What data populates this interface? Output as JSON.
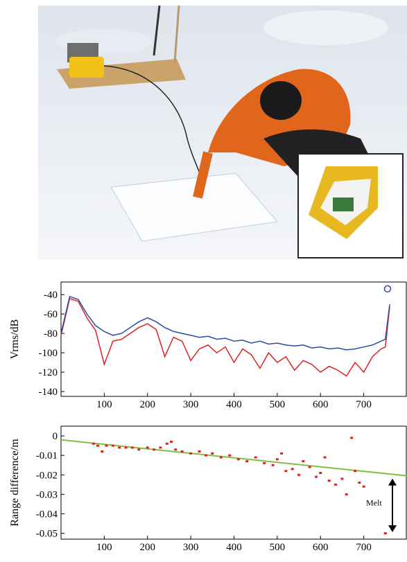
{
  "chart_data": [
    {
      "type": "line",
      "ylabel": "Vrms/dB",
      "x": [
        0,
        20,
        40,
        60,
        80,
        100,
        120,
        140,
        160,
        180,
        200,
        220,
        240,
        260,
        280,
        300,
        320,
        340,
        360,
        380,
        400,
        420,
        440,
        460,
        480,
        500,
        520,
        540,
        560,
        580,
        600,
        620,
        640,
        660,
        680,
        700,
        720,
        740,
        750,
        760
      ],
      "series": [
        {
          "color": "#e02020",
          "values": [
            -82,
            -44,
            -47,
            -64,
            -77,
            -112,
            -88,
            -86,
            -80,
            -74,
            -70,
            -76,
            -104,
            -84,
            -88,
            -108,
            -96,
            -92,
            -100,
            -94,
            -110,
            -96,
            -102,
            -116,
            -100,
            -110,
            -104,
            -118,
            -108,
            -112,
            -120,
            -114,
            -118,
            -124,
            -110,
            -120,
            -104,
            -96,
            -94,
            -52
          ]
        },
        {
          "color": "#2a4aa8",
          "values": [
            -80,
            -42,
            -45,
            -60,
            -72,
            -78,
            -82,
            -80,
            -74,
            -68,
            -64,
            -68,
            -74,
            -78,
            -80,
            -82,
            -84,
            -83,
            -86,
            -85,
            -88,
            -87,
            -90,
            -88,
            -91,
            -90,
            -92,
            -93,
            -92,
            -95,
            -94,
            -96,
            -95,
            -97,
            -96,
            -94,
            -92,
            -88,
            -86,
            -50
          ]
        }
      ],
      "marker": {
        "x": 755,
        "y": -34,
        "color": "#2a4aa8"
      },
      "xlim": [
        0,
        800
      ],
      "ylim": [
        -145,
        -27
      ],
      "xticks": [
        100,
        200,
        300,
        400,
        500,
        600,
        700
      ],
      "yticks": [
        -140,
        -120,
        -100,
        -80,
        -60,
        -40
      ]
    },
    {
      "type": "scatter",
      "ylabel": "Range difference/m",
      "annotation": "Melt",
      "x": [
        75,
        85,
        95,
        105,
        120,
        135,
        150,
        165,
        180,
        200,
        215,
        230,
        245,
        255,
        265,
        280,
        300,
        320,
        335,
        350,
        370,
        390,
        410,
        430,
        450,
        470,
        490,
        500,
        510,
        520,
        535,
        550,
        560,
        575,
        590,
        600,
        610,
        620,
        635,
        650,
        660,
        672,
        680,
        690,
        700,
        750
      ],
      "series": [
        {
          "color": "#e02020",
          "values": [
            -0.004,
            -0.005,
            -0.008,
            -0.005,
            -0.005,
            -0.006,
            -0.006,
            -0.006,
            -0.007,
            -0.006,
            -0.007,
            -0.006,
            -0.004,
            -0.003,
            -0.007,
            -0.008,
            -0.009,
            -0.008,
            -0.01,
            -0.009,
            -0.011,
            -0.01,
            -0.012,
            -0.013,
            -0.011,
            -0.014,
            -0.015,
            -0.012,
            -0.009,
            -0.018,
            -0.017,
            -0.02,
            -0.013,
            -0.016,
            -0.021,
            -0.019,
            -0.011,
            -0.023,
            -0.025,
            -0.022,
            -0.03,
            -0.001,
            -0.018,
            -0.024,
            -0.026,
            -0.05
          ]
        }
      ],
      "fit_line": {
        "x": [
          0,
          800
        ],
        "y": [
          -0.002,
          -0.0205
        ],
        "color": "#7cc142"
      },
      "xlim": [
        0,
        800
      ],
      "ylim": [
        -0.053,
        0.005
      ],
      "xticks": [
        100,
        200,
        300,
        400,
        500,
        600,
        700
      ],
      "yticks": [
        0,
        -0.01,
        -0.02,
        -0.03,
        -0.04,
        -0.05
      ]
    }
  ]
}
